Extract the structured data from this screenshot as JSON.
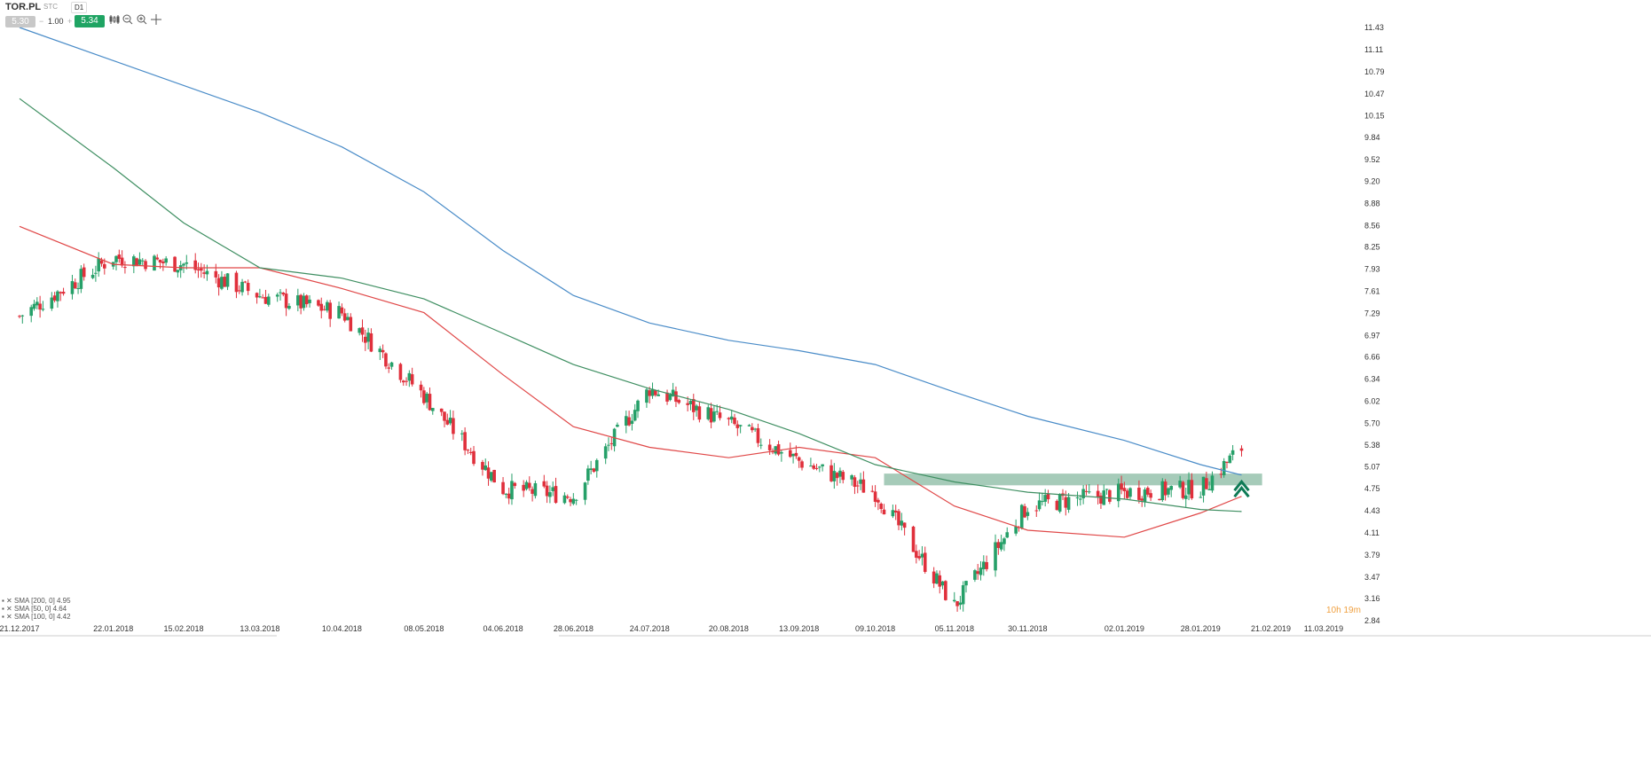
{
  "toolbar": {
    "symbol": "TOR.PL",
    "type": "STC",
    "timeframe": "D1",
    "sell_price": "5.30",
    "volume": "1.00",
    "volume_minus": "−",
    "volume_plus": "+",
    "buy_price": "5.34"
  },
  "legend": [
    "SMA [200, 0] 4.95",
    "SMA [50, 0] 4.64",
    "SMA [100, 0] 4.42"
  ],
  "timer": "10h 19m",
  "chart_data": {
    "type": "candlestick",
    "y_ticks": [
      "11.43",
      "11.11",
      "10.79",
      "10.47",
      "10.15",
      "9.84",
      "9.52",
      "9.20",
      "8.88",
      "8.56",
      "8.25",
      "7.93",
      "7.61",
      "7.29",
      "6.97",
      "6.66",
      "6.34",
      "6.02",
      "5.70",
      "5.38",
      "5.07",
      "4.75",
      "4.43",
      "4.11",
      "3.79",
      "3.47",
      "3.16",
      "2.84"
    ],
    "x_ticks": [
      "21.12.2017",
      "22.01.2018",
      "15.02.2018",
      "13.03.2018",
      "10.04.2018",
      "08.05.2018",
      "04.06.2018",
      "28.06.2018",
      "24.07.2018",
      "20.08.2018",
      "13.09.2018",
      "09.10.2018",
      "05.11.2018",
      "30.11.2018",
      "02.01.2019",
      "28.01.2019",
      "21.02.2019",
      "11.03.2019"
    ],
    "ylim": [
      2.84,
      11.43
    ],
    "grid": false,
    "up_color": "#26a069",
    "down_color": "#e0303c",
    "close_points": [
      {
        "date": "21.12.2017",
        "close": 7.25
      },
      {
        "date": "22.01.2018",
        "close": 8.1
      },
      {
        "date": "15.02.2018",
        "close": 8.0
      },
      {
        "date": "13.03.2018",
        "close": 7.55
      },
      {
        "date": "10.04.2018",
        "close": 7.3
      },
      {
        "date": "08.05.2018",
        "close": 6.1
      },
      {
        "date": "04.06.2018",
        "close": 4.75
      },
      {
        "date": "28.06.2018",
        "close": 4.65
      },
      {
        "date": "24.07.2018",
        "close": 6.2
      },
      {
        "date": "20.08.2018",
        "close": 5.7
      },
      {
        "date": "13.09.2018",
        "close": 5.15
      },
      {
        "date": "09.10.2018",
        "close": 4.7
      },
      {
        "date": "05.11.2018",
        "close": 3.05
      },
      {
        "date": "30.11.2018",
        "close": 4.5
      },
      {
        "date": "02.01.2019",
        "close": 4.7
      },
      {
        "date": "28.01.2019",
        "close": 4.75
      },
      {
        "date": "11.02.2019",
        "close": 5.34
      }
    ],
    "series": [
      {
        "name": "SMA [200, 0] 4.95",
        "color": "#4a8cc8",
        "points": [
          [
            "21.12.2017",
            11.43
          ],
          [
            "13.03.2018",
            10.2
          ],
          [
            "10.04.2018",
            9.7
          ],
          [
            "08.05.2018",
            9.05
          ],
          [
            "04.06.2018",
            8.2
          ],
          [
            "28.06.2018",
            7.55
          ],
          [
            "24.07.2018",
            7.15
          ],
          [
            "20.08.2018",
            6.9
          ],
          [
            "13.09.2018",
            6.75
          ],
          [
            "09.10.2018",
            6.55
          ],
          [
            "05.11.2018",
            6.15
          ],
          [
            "30.11.2018",
            5.8
          ],
          [
            "02.01.2019",
            5.45
          ],
          [
            "28.01.2019",
            5.1
          ],
          [
            "11.02.2019",
            4.95
          ]
        ]
      },
      {
        "name": "SMA [50, 0] 4.64",
        "color": "#e04848",
        "points": [
          [
            "21.12.2017",
            8.55
          ],
          [
            "22.01.2018",
            8.0
          ],
          [
            "15.02.2018",
            7.95
          ],
          [
            "13.03.2018",
            7.95
          ],
          [
            "10.04.2018",
            7.65
          ],
          [
            "08.05.2018",
            7.3
          ],
          [
            "04.06.2018",
            6.4
          ],
          [
            "28.06.2018",
            5.65
          ],
          [
            "24.07.2018",
            5.35
          ],
          [
            "20.08.2018",
            5.2
          ],
          [
            "13.09.2018",
            5.35
          ],
          [
            "09.10.2018",
            5.2
          ],
          [
            "05.11.2018",
            4.5
          ],
          [
            "30.11.2018",
            4.15
          ],
          [
            "02.01.2019",
            4.05
          ],
          [
            "28.01.2019",
            4.4
          ],
          [
            "11.02.2019",
            4.64
          ]
        ]
      },
      {
        "name": "SMA [100, 0] 4.42",
        "color": "#3f8f62",
        "points": [
          [
            "21.12.2017",
            10.4
          ],
          [
            "22.01.2018",
            9.4
          ],
          [
            "15.02.2018",
            8.6
          ],
          [
            "13.03.2018",
            7.95
          ],
          [
            "10.04.2018",
            7.8
          ],
          [
            "08.05.2018",
            7.5
          ],
          [
            "04.06.2018",
            7.0
          ],
          [
            "28.06.2018",
            6.55
          ],
          [
            "24.07.2018",
            6.2
          ],
          [
            "20.08.2018",
            5.9
          ],
          [
            "13.09.2018",
            5.55
          ],
          [
            "09.10.2018",
            5.1
          ],
          [
            "05.11.2018",
            4.85
          ],
          [
            "30.11.2018",
            4.7
          ],
          [
            "02.01.2019",
            4.6
          ],
          [
            "28.01.2019",
            4.45
          ],
          [
            "11.02.2019",
            4.42
          ]
        ]
      }
    ],
    "zone": {
      "low": 4.8,
      "high": 4.97,
      "from": "12.10.2018",
      "to": "18.02.2019",
      "color": "#6aa88a"
    },
    "arrow": {
      "direction": "up",
      "date": "11.02.2019",
      "value": 4.75,
      "color": "#0e7a55"
    }
  }
}
